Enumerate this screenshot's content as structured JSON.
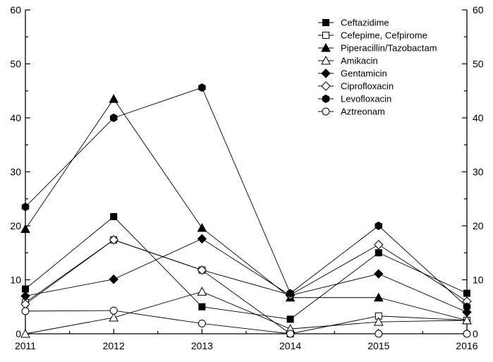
{
  "chart_data": {
    "type": "line",
    "title": "",
    "xlabel": "",
    "ylabel": "",
    "x": [
      "2011",
      "2012",
      "2013",
      "2014",
      "2015",
      "2016"
    ],
    "ylim": [
      0,
      60
    ],
    "yticks": [
      "0",
      "10",
      "20",
      "30",
      "40",
      "50",
      "60"
    ],
    "right_axis_mirrored": true,
    "grid": false,
    "legend_position": "top-right",
    "series": [
      {
        "name": "Ceftazidime",
        "marker": "square-filled",
        "values": [
          8.3,
          21.7,
          5.0,
          2.7,
          15.0,
          7.5
        ]
      },
      {
        "name": "Cefepime, Cefpirome",
        "marker": "square-open",
        "values": [
          5.8,
          17.4,
          11.8,
          0.0,
          3.3,
          2.5
        ]
      },
      {
        "name": "Piperacillin/Tazobactam",
        "marker": "triangle-filled",
        "values": [
          19.4,
          43.5,
          19.6,
          6.7,
          6.7,
          2.5
        ]
      },
      {
        "name": "Amikacin",
        "marker": "triangle-open",
        "values": [
          0.0,
          3.0,
          7.8,
          0.9,
          2.2,
          2.5
        ]
      },
      {
        "name": "Gentamicin",
        "marker": "diamond-filled",
        "values": [
          7.0,
          10.1,
          17.6,
          7.1,
          11.1,
          4.0
        ]
      },
      {
        "name": "Ciprofloxacin",
        "marker": "diamond-open",
        "values": [
          5.5,
          17.4,
          11.8,
          7.2,
          16.5,
          6.0
        ]
      },
      {
        "name": "Levofloxacin",
        "marker": "hexagon-filled",
        "values": [
          23.5,
          40.0,
          45.6,
          7.5,
          20.0,
          5.0
        ]
      },
      {
        "name": "Aztreonam",
        "marker": "circle-open",
        "values": [
          4.2,
          4.3,
          1.9,
          0.0,
          0.0,
          0.0
        ]
      }
    ]
  }
}
